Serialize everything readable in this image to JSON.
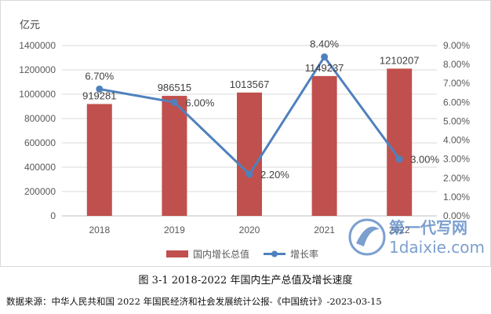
{
  "chart_data": {
    "type": "bar",
    "categories": [
      "2018",
      "2019",
      "2020",
      "2021",
      "2022"
    ],
    "series": [
      {
        "name": "国内增长总值",
        "type": "bar",
        "axis": "left",
        "values": [
          919281,
          986515,
          1013567,
          1149237,
          1210207
        ],
        "labels": [
          "919281",
          "986515",
          "1013567",
          "1149237",
          "1210207"
        ],
        "color": "#c0504d"
      },
      {
        "name": "增长率",
        "type": "line",
        "axis": "right",
        "values": [
          6.7,
          6.0,
          2.2,
          8.4,
          3.0
        ],
        "labels": [
          "6.70%",
          "6.00%",
          "2.20%",
          "8.40%",
          "3.00%"
        ],
        "color": "#4f81bd"
      }
    ],
    "yleft": {
      "unit": "亿元",
      "min": 0,
      "max": 1400000,
      "step": 200000,
      "ticks": [
        "0",
        "200000",
        "400000",
        "600000",
        "800000",
        "1000000",
        "1200000",
        "1400000"
      ]
    },
    "yright": {
      "min": 0,
      "max": 9,
      "step": 1,
      "ticks": [
        "0.00%",
        "1.00%",
        "2.00%",
        "3.00%",
        "4.00%",
        "5.00%",
        "6.00%",
        "7.00%",
        "8.00%",
        "9.00%"
      ]
    },
    "grid": true,
    "legend": "bottom"
  },
  "caption": "图 3-1 2018-2022 年国内生产总值及增长速度",
  "source": "数据来源：中华人民共和国 2022 年国民经济和社会发展统计公报-《中国统计》-2023-03-15",
  "watermark": {
    "text_cn": "第一代写网",
    "text_en": "1daixie.com",
    "color": "#4f7fc0"
  }
}
